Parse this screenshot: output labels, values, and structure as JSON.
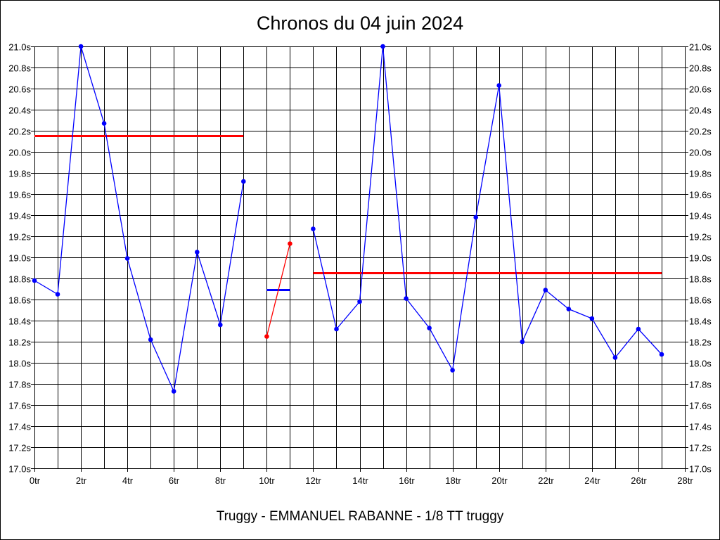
{
  "chart_data": {
    "type": "line",
    "title": "Chronos du 04 juin 2024",
    "subtitle": "Truggy - EMMANUEL RABANNE - 1/8 TT truggy",
    "xlim": [
      0,
      28
    ],
    "ylim": [
      17.0,
      21.0
    ],
    "x_ticks": [
      0,
      2,
      4,
      6,
      8,
      10,
      12,
      14,
      16,
      18,
      20,
      22,
      24,
      26,
      28
    ],
    "x_tick_labels": [
      "0tr",
      "2tr",
      "4tr",
      "6tr",
      "8tr",
      "10tr",
      "12tr",
      "14tr",
      "16tr",
      "18tr",
      "20tr",
      "22tr",
      "24tr",
      "26tr",
      "28tr"
    ],
    "y_ticks": [
      17.0,
      17.2,
      17.4,
      17.6,
      17.8,
      18.0,
      18.2,
      18.4,
      18.6,
      18.8,
      19.0,
      19.2,
      19.4,
      19.6,
      19.8,
      20.0,
      20.2,
      20.4,
      20.6,
      20.8,
      21.0
    ],
    "y_tick_labels": [
      "17.0s",
      "17.2s",
      "17.4s",
      "17.6s",
      "17.8s",
      "18.0s",
      "18.2s",
      "18.4s",
      "18.6s",
      "18.8s",
      "19.0s",
      "19.2s",
      "19.4s",
      "19.6s",
      "19.8s",
      "20.0s",
      "20.2s",
      "20.4s",
      "20.6s",
      "20.8s",
      "21.0s"
    ],
    "grid": true,
    "series": [
      {
        "color": "#0000ff",
        "points": [
          [
            0,
            18.78
          ],
          [
            1,
            18.65
          ],
          [
            2,
            21.0
          ],
          [
            3,
            20.27
          ],
          [
            4,
            18.99
          ],
          [
            5,
            18.22
          ],
          [
            6,
            17.73
          ],
          [
            7,
            19.05
          ],
          [
            8,
            18.36
          ],
          [
            9,
            19.72
          ]
        ]
      },
      {
        "color": "#ff0000",
        "points": [
          [
            10,
            18.25
          ],
          [
            11,
            19.13
          ]
        ]
      },
      {
        "color": "#0000ff",
        "points": [
          [
            12,
            19.27
          ],
          [
            13,
            18.32
          ],
          [
            14,
            18.58
          ],
          [
            15,
            21.0
          ],
          [
            16,
            18.61
          ],
          [
            17,
            18.33
          ],
          [
            18,
            17.93
          ],
          [
            19,
            19.38
          ],
          [
            20,
            20.63
          ],
          [
            21,
            18.2
          ],
          [
            22,
            18.69
          ],
          [
            23,
            18.51
          ],
          [
            24,
            18.42
          ],
          [
            25,
            18.05
          ],
          [
            26,
            18.32
          ],
          [
            27,
            18.08
          ]
        ]
      }
    ],
    "reference_lines": [
      {
        "color": "#ff0000",
        "x": [
          0,
          9
        ],
        "y": 20.15
      },
      {
        "color": "#0000ff",
        "x": [
          10,
          11
        ],
        "y": 18.69
      },
      {
        "color": "#ff0000",
        "x": [
          12,
          27
        ],
        "y": 18.85
      }
    ]
  }
}
